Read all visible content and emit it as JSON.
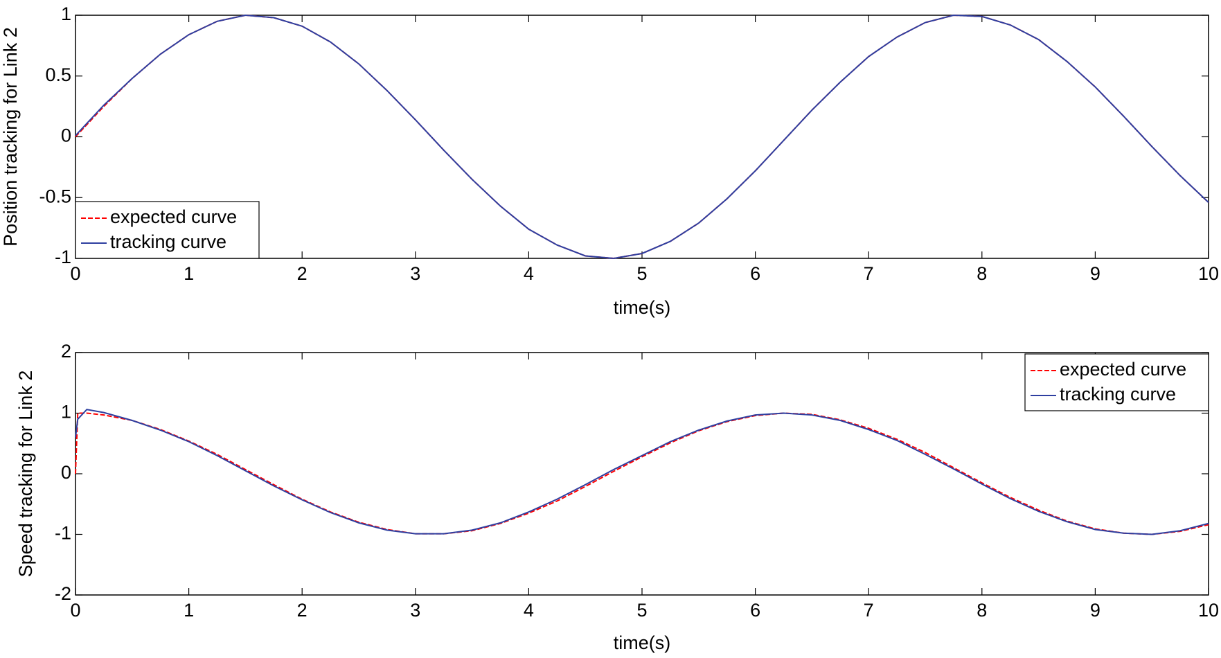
{
  "chart_data": [
    {
      "type": "line",
      "x_label": "time(s)",
      "y_label": "Position tracking for Link 2",
      "x": [
        0,
        0.25,
        0.5,
        0.75,
        1,
        1.25,
        1.5,
        1.75,
        2,
        2.25,
        2.5,
        2.75,
        3,
        3.25,
        3.5,
        3.75,
        4,
        4.25,
        4.5,
        4.75,
        5,
        5.25,
        5.5,
        5.75,
        6,
        6.25,
        6.5,
        6.75,
        7,
        7.25,
        7.5,
        7.75,
        8,
        8.25,
        8.5,
        8.75,
        9,
        9.25,
        9.5,
        9.75,
        10
      ],
      "series": [
        {
          "name": "expected curve",
          "color": "#ff0000",
          "dashed": true,
          "values": [
            0,
            0.25,
            0.48,
            0.68,
            0.84,
            0.95,
            1.0,
            0.98,
            0.91,
            0.78,
            0.6,
            0.38,
            0.14,
            -0.11,
            -0.35,
            -0.57,
            -0.76,
            -0.89,
            -0.98,
            -1.0,
            -0.96,
            -0.86,
            -0.71,
            -0.51,
            -0.28,
            -0.03,
            0.22,
            0.45,
            0.66,
            0.82,
            0.94,
            1.0,
            0.99,
            0.92,
            0.8,
            0.62,
            0.41,
            0.17,
            -0.08,
            -0.32,
            -0.54
          ]
        },
        {
          "name": "tracking curve",
          "color": "#2e3fa0",
          "dashed": false,
          "values": [
            0.01,
            0.26,
            0.48,
            0.68,
            0.84,
            0.95,
            1.0,
            0.98,
            0.91,
            0.78,
            0.6,
            0.38,
            0.14,
            -0.11,
            -0.35,
            -0.57,
            -0.76,
            -0.89,
            -0.98,
            -1.0,
            -0.96,
            -0.86,
            -0.71,
            -0.51,
            -0.28,
            -0.03,
            0.22,
            0.45,
            0.66,
            0.82,
            0.94,
            1.0,
            0.99,
            0.92,
            0.8,
            0.62,
            0.41,
            0.17,
            -0.08,
            -0.32,
            -0.54
          ]
        }
      ],
      "xlim": [
        0,
        10
      ],
      "xticks": [
        0,
        1,
        2,
        3,
        4,
        5,
        6,
        7,
        8,
        9,
        10
      ],
      "ylim": [
        -1,
        1
      ],
      "yticks": [
        -1,
        -0.5,
        0,
        0.5,
        1
      ],
      "legend": "lower left"
    },
    {
      "type": "line",
      "x_label": "time(s)",
      "y_label": "Speed tracking for Link 2",
      "x": [
        0,
        0.02,
        0.1,
        0.25,
        0.5,
        0.75,
        1,
        1.25,
        1.5,
        1.75,
        2,
        2.25,
        2.5,
        2.75,
        3,
        3.25,
        3.5,
        3.75,
        4,
        4.25,
        4.5,
        4.75,
        5,
        5.25,
        5.5,
        5.75,
        6,
        6.25,
        6.5,
        6.75,
        7,
        7.25,
        7.5,
        7.75,
        8,
        8.25,
        8.5,
        8.75,
        9,
        9.25,
        9.5,
        9.75,
        10
      ],
      "series": [
        {
          "name": "expected curve",
          "color": "#ff0000",
          "dashed": true,
          "values": [
            0,
            1.0,
            1.0,
            0.97,
            0.88,
            0.73,
            0.54,
            0.32,
            0.07,
            -0.18,
            -0.42,
            -0.63,
            -0.8,
            -0.92,
            -0.99,
            -0.99,
            -0.94,
            -0.82,
            -0.65,
            -0.45,
            -0.21,
            0.04,
            0.28,
            0.51,
            0.71,
            0.86,
            0.96,
            1.0,
            0.98,
            0.89,
            0.75,
            0.57,
            0.35,
            0.1,
            -0.15,
            -0.39,
            -0.6,
            -0.78,
            -0.91,
            -0.98,
            -1.0,
            -0.95,
            -0.84
          ]
        },
        {
          "name": "tracking curve",
          "color": "#2e3fa0",
          "dashed": false,
          "values": [
            0.6,
            0.9,
            1.06,
            1.01,
            0.88,
            0.72,
            0.53,
            0.3,
            0.05,
            -0.2,
            -0.43,
            -0.64,
            -0.81,
            -0.93,
            -0.99,
            -0.99,
            -0.93,
            -0.81,
            -0.63,
            -0.42,
            -0.18,
            0.07,
            0.3,
            0.53,
            0.72,
            0.87,
            0.97,
            1.0,
            0.97,
            0.88,
            0.73,
            0.55,
            0.32,
            0.08,
            -0.17,
            -0.41,
            -0.62,
            -0.79,
            -0.92,
            -0.98,
            -1.0,
            -0.94,
            -0.82
          ]
        }
      ],
      "xlim": [
        0,
        10
      ],
      "xticks": [
        0,
        1,
        2,
        3,
        4,
        5,
        6,
        7,
        8,
        9,
        10
      ],
      "ylim": [
        -2,
        2
      ],
      "yticks": [
        -2,
        -1,
        0,
        1,
        2
      ],
      "legend": "upper right"
    }
  ]
}
